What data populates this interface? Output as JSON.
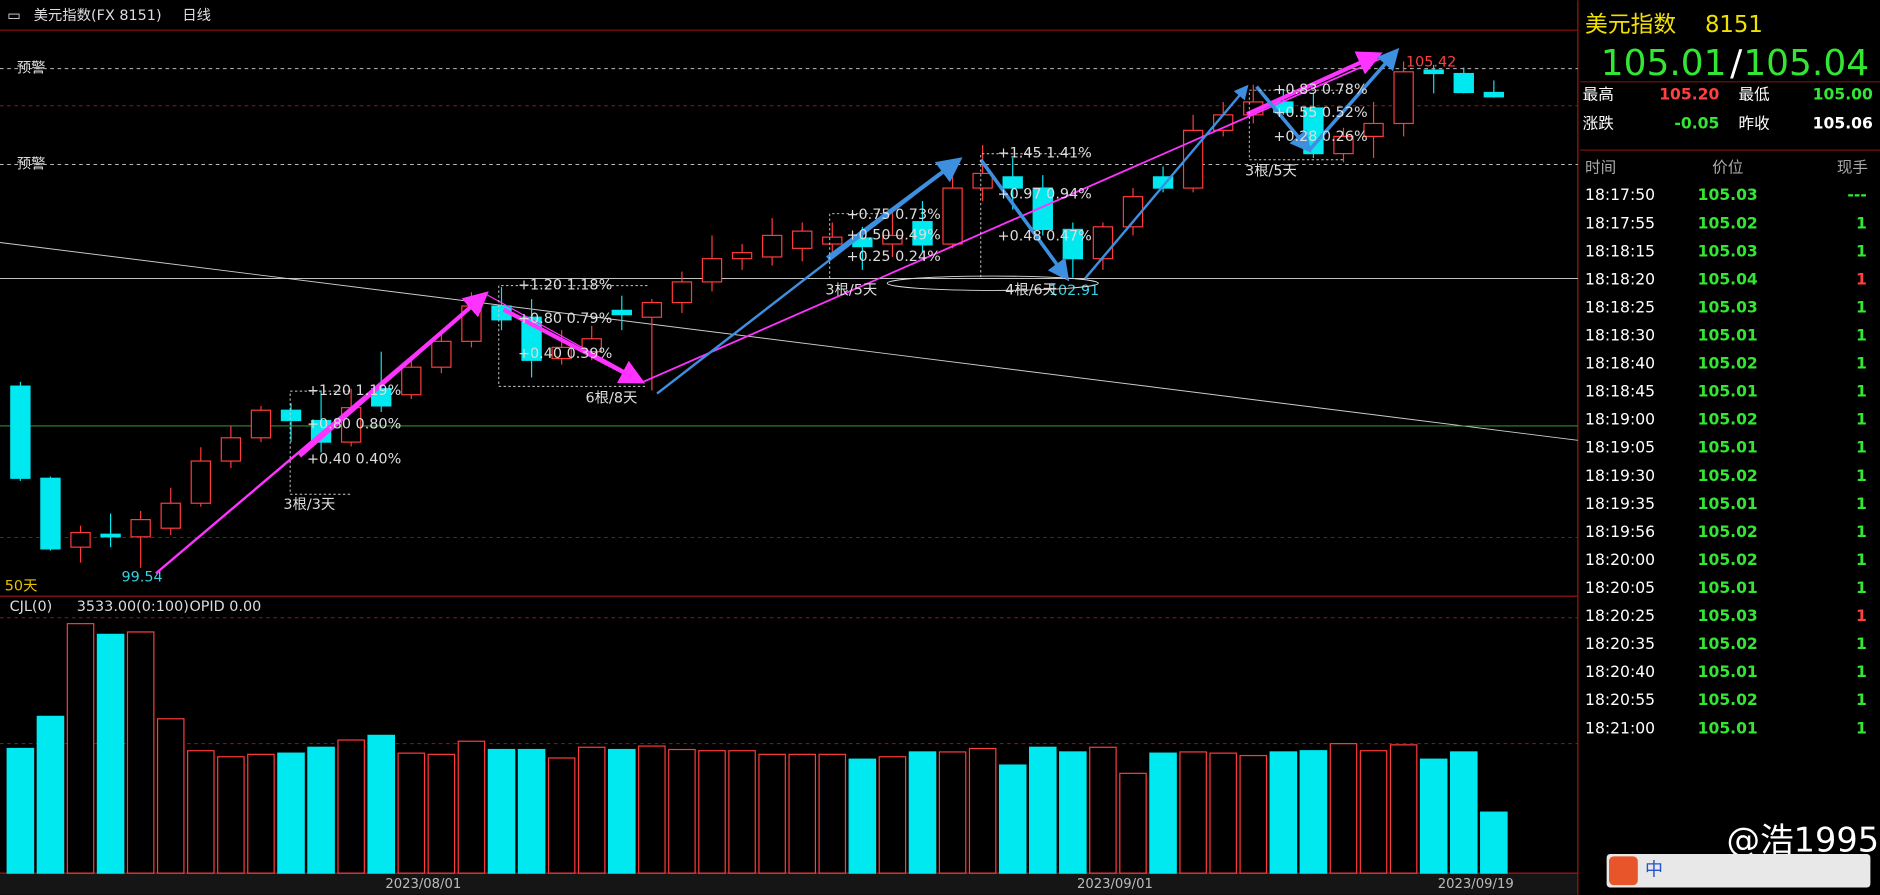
{
  "chart_data": [
    {
      "type": "candlestick",
      "title": "美元指数(FX 8151)",
      "period": "日线",
      "categories": [
        null,
        null,
        null,
        null,
        null,
        null,
        null,
        null,
        null,
        null,
        null,
        null,
        null,
        "2023/08/01",
        null,
        null,
        null,
        null,
        null,
        null,
        null,
        null,
        null,
        null,
        null,
        null,
        null,
        null,
        null,
        null,
        null,
        null,
        null,
        null,
        null,
        null,
        "2023/09/01",
        null,
        null,
        null,
        null,
        null,
        null,
        null,
        null,
        null,
        null,
        null,
        "2023/09/19",
        null
      ],
      "open": [
        101.65,
        100.58,
        99.78,
        99.93,
        99.9,
        100.0,
        100.29,
        100.78,
        101.05,
        101.37,
        101.25,
        101.0,
        101.62,
        101.55,
        101.87,
        102.17,
        102.58,
        102.45,
        101.97,
        102.05,
        102.53,
        102.45,
        102.62,
        102.86,
        103.13,
        103.15,
        103.25,
        103.3,
        103.37,
        103.3,
        103.56,
        103.3,
        103.95,
        104.08,
        103.95,
        103.47,
        103.13,
        103.5,
        104.08,
        103.95,
        104.62,
        104.8,
        104.95,
        104.88,
        104.35,
        104.55,
        104.7,
        105.32,
        105.28,
        105.06
      ],
      "high": [
        101.7,
        100.6,
        100.03,
        100.17,
        100.2,
        100.47,
        100.94,
        101.19,
        101.42,
        101.45,
        101.6,
        101.62,
        102.05,
        101.95,
        102.3,
        102.74,
        102.8,
        102.66,
        102.3,
        102.35,
        102.7,
        102.66,
        102.98,
        103.4,
        103.3,
        103.6,
        103.55,
        103.55,
        103.5,
        103.7,
        103.8,
        104.25,
        104.45,
        104.3,
        104.1,
        103.55,
        103.55,
        103.95,
        104.2,
        104.8,
        104.95,
        105.15,
        105.1,
        105.05,
        104.65,
        104.95,
        105.42,
        105.38,
        105.35,
        105.2
      ],
      "low": [
        100.55,
        99.74,
        99.6,
        99.78,
        99.54,
        99.92,
        100.25,
        100.7,
        101.0,
        101.0,
        100.88,
        100.95,
        101.35,
        101.5,
        101.8,
        102.1,
        102.3,
        101.75,
        101.9,
        101.95,
        102.3,
        101.6,
        102.5,
        102.75,
        103.0,
        103.05,
        103.1,
        103.2,
        103.0,
        103.15,
        103.2,
        103.25,
        103.8,
        103.7,
        103.4,
        102.91,
        103.0,
        103.4,
        103.9,
        103.9,
        104.55,
        104.7,
        104.8,
        104.3,
        104.25,
        104.3,
        104.55,
        105.05,
        105.05,
        105.0
      ],
      "close": [
        100.58,
        99.76,
        99.95,
        99.9,
        100.1,
        100.29,
        100.78,
        101.05,
        101.37,
        101.25,
        101.0,
        101.4,
        101.42,
        101.87,
        102.17,
        102.58,
        102.42,
        101.95,
        102.1,
        102.2,
        102.48,
        102.62,
        102.86,
        103.13,
        103.2,
        103.4,
        103.45,
        103.38,
        103.27,
        103.4,
        103.29,
        103.95,
        104.12,
        103.95,
        103.47,
        103.13,
        103.5,
        103.85,
        103.95,
        104.62,
        104.8,
        104.95,
        104.83,
        104.35,
        104.55,
        104.7,
        105.3,
        105.28,
        105.06,
        105.01
      ],
      "ylim": [
        99.35,
        105.88
      ],
      "up_color": "#ff3b3b",
      "down_color": "#00e8f0",
      "alerts": [
        "预警",
        "预警"
      ],
      "span_label": "50天",
      "measures": [
        {
          "lines": [
            "+1.20 1.19%",
            "+0.80 0.80%",
            "+0.40 0.40%"
          ],
          "count": "3根/3天"
        },
        {
          "lines": [
            "+1.20 1.18%",
            "+0.80 0.79%",
            "+0.40 0.39%"
          ],
          "count": "6根/8天"
        },
        {
          "lines": [
            "+0.75 0.73%",
            "+0.50 0.49%",
            "+0.25 0.24%"
          ],
          "count": "3根/5天"
        },
        {
          "lines": [
            "+1.45 1.41%",
            "+0.97 0.94%",
            "+0.48 0.47%"
          ],
          "count": "4根/6天"
        },
        {
          "lines": [
            "+0.83 0.78%",
            "+0.55 0.52%",
            "+0.28 0.26%"
          ],
          "count": "3根/5天"
        }
      ]
    },
    {
      "type": "bar",
      "title": "CJL(0)",
      "subtitle": "3533.00(0:100)",
      "extra": "OPID 0.00",
      "values": [
        7220,
        9080,
        14450,
        13830,
        13970,
        8940,
        7090,
        6740,
        6880,
        6950,
        7290,
        7710,
        7980,
        6950,
        6880,
        7640,
        7160,
        7160,
        6670,
        7290,
        7160,
        7360,
        7160,
        7090,
        7090,
        6880,
        6880,
        6880,
        6600,
        6740,
        7020,
        7020,
        7220,
        6260,
        7290,
        7020,
        7290,
        5780,
        6950,
        7020,
        6950,
        6810,
        7020,
        7090,
        7500,
        7090,
        7430,
        6600,
        7020,
        3533
      ],
      "ylim": [
        0,
        15000
      ]
    }
  ],
  "quote": {
    "name": "美元指数",
    "code": "8151",
    "bid": "105.01",
    "ask": "105.04",
    "stats": [
      {
        "label": "最高",
        "value": "105.20",
        "color": "#ff4040"
      },
      {
        "label": "最低",
        "value": "105.00",
        "color": "#33e633"
      },
      {
        "label": "涨跌",
        "value": "-0.05",
        "color": "#33e633"
      },
      {
        "label": "昨收",
        "value": "105.06",
        "color": "#ffffff"
      }
    ]
  },
  "trades": {
    "headers": [
      "时间",
      "价位",
      "现手"
    ],
    "rows": [
      {
        "time": "18:17:50",
        "price": "105.03",
        "qty": "---",
        "color": "#33e633"
      },
      {
        "time": "18:17:55",
        "price": "105.02",
        "qty": "1",
        "color": "#33e633"
      },
      {
        "time": "18:18:15",
        "price": "105.03",
        "qty": "1",
        "color": "#33e633"
      },
      {
        "time": "18:18:20",
        "price": "105.04",
        "qty": "1",
        "color": "#ff4040"
      },
      {
        "time": "18:18:25",
        "price": "105.03",
        "qty": "1",
        "color": "#33e633"
      },
      {
        "time": "18:18:30",
        "price": "105.01",
        "qty": "1",
        "color": "#33e633"
      },
      {
        "time": "18:18:40",
        "price": "105.02",
        "qty": "1",
        "color": "#33e633"
      },
      {
        "time": "18:18:45",
        "price": "105.01",
        "qty": "1",
        "color": "#33e633"
      },
      {
        "time": "18:19:00",
        "price": "105.02",
        "qty": "1",
        "color": "#33e633"
      },
      {
        "time": "18:19:05",
        "price": "105.01",
        "qty": "1",
        "color": "#33e633"
      },
      {
        "time": "18:19:30",
        "price": "105.02",
        "qty": "1",
        "color": "#33e633"
      },
      {
        "time": "18:19:35",
        "price": "105.01",
        "qty": "1",
        "color": "#33e633"
      },
      {
        "time": "18:19:56",
        "price": "105.02",
        "qty": "1",
        "color": "#33e633"
      },
      {
        "time": "18:20:00",
        "price": "105.02",
        "qty": "1",
        "color": "#33e633"
      },
      {
        "time": "18:20:05",
        "price": "105.01",
        "qty": "1",
        "color": "#33e633"
      },
      {
        "time": "18:20:25",
        "price": "105.03",
        "qty": "1",
        "color": "#ff4040"
      },
      {
        "time": "18:20:35",
        "price": "105.02",
        "qty": "1",
        "color": "#33e633"
      },
      {
        "time": "18:20:40",
        "price": "105.01",
        "qty": "1",
        "color": "#33e633"
      },
      {
        "time": "18:20:55",
        "price": "105.02",
        "qty": "1",
        "color": "#33e633"
      },
      {
        "time": "18:21:00",
        "price": "105.01",
        "qty": "1",
        "color": "#33e633"
      }
    ]
  },
  "watermark": "@浩1995",
  "ime": "中"
}
